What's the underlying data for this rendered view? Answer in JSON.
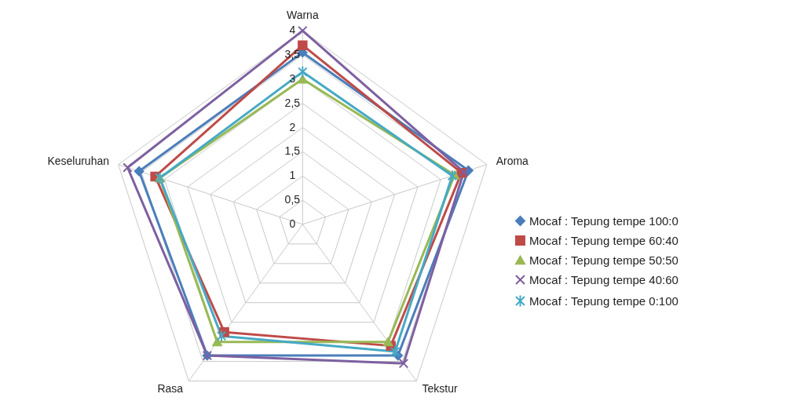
{
  "chart_data": {
    "type": "radar",
    "categories": [
      "Warna",
      "Aroma",
      "Tekstur",
      "Rasa",
      "Keseluruhan"
    ],
    "series": [
      {
        "name": "Mocaf : Tepung tempe 100:0",
        "color": "#4a7ebb",
        "marker": "diamond",
        "values": [
          3.55,
          3.6,
          3.35,
          3.35,
          3.55
        ]
      },
      {
        "name": "Mocaf : Tepung tempe 60:40",
        "color": "#be4b48",
        "marker": "square",
        "values": [
          3.7,
          3.45,
          3.1,
          2.75,
          3.2
        ]
      },
      {
        "name": "Mocaf : Tepung tempe 50:50",
        "color": "#98b954",
        "marker": "triangle",
        "values": [
          3.0,
          3.3,
          3.0,
          3.0,
          3.1
        ]
      },
      {
        "name": "Mocaf : Tepung tempe 40:60",
        "color": "#7d60a0",
        "marker": "cross",
        "values": [
          4.0,
          3.5,
          3.55,
          3.35,
          3.8
        ]
      },
      {
        "name": "Mocaf : Tepung tempe 0:100",
        "color": "#46aac5",
        "marker": "star",
        "values": [
          3.15,
          3.25,
          3.25,
          2.85,
          3.1
        ]
      }
    ],
    "ylim": [
      0,
      4
    ],
    "yticks": [
      {
        "value": 0,
        "label": "0"
      },
      {
        "value": 0.5,
        "label": "0,5"
      },
      {
        "value": 1,
        "label": "1"
      },
      {
        "value": 1.5,
        "label": "1,5"
      },
      {
        "value": 2,
        "label": "2"
      },
      {
        "value": 2.5,
        "label": "2,5"
      },
      {
        "value": 3,
        "label": "3"
      },
      {
        "value": 3.5,
        "label": "3,5"
      },
      {
        "value": 4,
        "label": "4"
      }
    ],
    "grid": true,
    "legend": "right"
  }
}
